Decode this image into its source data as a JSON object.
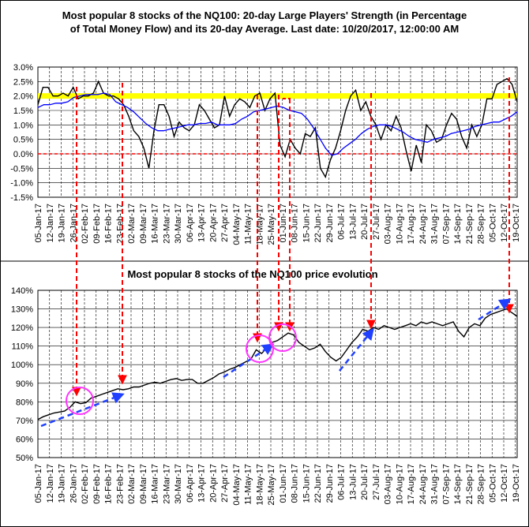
{
  "chart_data": [
    {
      "type": "line",
      "title_line1": "Most popular 8 stocks of the NQ100: 20-day Large Players' Strength (in Percentage",
      "title_line2": "of Total Money Flow) and its 20-day Average. Last date: 10/20/2017, 12:00:00 AM",
      "ylim": [
        -1.5,
        3.0
      ],
      "yticks": [
        "3.0%",
        "2.5%",
        "2.0%",
        "1.5%",
        "1.0%",
        "0.5%",
        "0.0%",
        "-0.5%",
        "-1.0%",
        "-1.5%"
      ],
      "xlabels": [
        "05-Jan-17",
        "12-Jan-17",
        "19-Jan-17",
        "26-Jan-17",
        "02-Feb-17",
        "09-Feb-17",
        "16-Feb-17",
        "23-Feb-17",
        "02-Mar-17",
        "09-Mar-17",
        "16-Mar-17",
        "23-Mar-17",
        "30-Mar-17",
        "06-Apr-17",
        "13-Apr-17",
        "20-Apr-17",
        "27-Apr-17",
        "04-May-17",
        "11-May-17",
        "18-May-17",
        "25-May-17",
        "01-Jun-17",
        "08-Jun-17",
        "15-Jun-17",
        "22-Jun-17",
        "29-Jun-17",
        "06-Jul-17",
        "13-Jul-17",
        "20-Jul-17",
        "27-Jul-17",
        "03-Aug-17",
        "10-Aug-17",
        "17-Aug-17",
        "24-Aug-17",
        "31-Aug-17",
        "07-Sep-17",
        "14-Sep-17",
        "21-Sep-17",
        "28-Sep-17",
        "05-Oct-17",
        "12-Oct-17",
        "19-Oct-17"
      ],
      "reference_lines": [
        {
          "value": 2.0,
          "color": "#ffff00"
        },
        {
          "value": 0.0,
          "color": "#ff0000"
        }
      ],
      "series": [
        {
          "color": "#000000",
          "values": [
            1.7,
            2.3,
            2.3,
            2.0,
            2.0,
            2.1,
            2.0,
            2.3,
            1.9,
            2.0,
            2.0,
            2.1,
            2.5,
            2.1,
            2.0,
            2.0,
            1.9,
            1.7,
            1.3,
            0.8,
            0.6,
            0.2,
            -0.5,
            0.8,
            1.7,
            1.7,
            1.3,
            0.6,
            1.1,
            0.9,
            0.8,
            1.0,
            1.7,
            1.5,
            1.2,
            0.9,
            1.0,
            2.0,
            1.3,
            1.7,
            1.9,
            1.8,
            1.6,
            2.0,
            2.1,
            1.5,
            1.9,
            2.1,
            0.3,
            -0.1,
            0.5,
            0.2,
            0.0,
            0.7,
            0.6,
            0.9,
            -0.5,
            -0.8,
            -0.2,
            0.2,
            0.8,
            1.5,
            2.0,
            2.2,
            1.5,
            1.8,
            1.3,
            1.0,
            0.5,
            1.0,
            0.8,
            1.3,
            0.9,
            0.1,
            -0.6,
            0.3,
            -0.3,
            1.0,
            0.8,
            0.4,
            0.5,
            1.0,
            1.4,
            1.2,
            0.6,
            0.2,
            1.0,
            0.6,
            1.0,
            1.9,
            1.9,
            2.4,
            2.5,
            2.6,
            2.4,
            1.8
          ]
        },
        {
          "color": "#0000ff",
          "values": [
            1.6,
            1.7,
            1.7,
            1.75,
            1.75,
            1.8,
            1.95,
            2.0,
            2.05,
            2.05,
            2.05,
            2.1,
            2.05,
            1.8,
            1.7,
            1.6,
            1.45,
            1.25,
            1.05,
            0.9,
            0.8,
            0.8,
            0.85,
            0.9,
            0.95,
            1.0,
            1.0,
            1.05,
            1.05,
            1.1,
            1.0,
            1.0,
            1.0,
            1.05,
            1.2,
            1.3,
            1.45,
            1.5,
            1.55,
            1.6,
            1.65,
            1.6,
            1.5,
            1.45,
            1.4,
            1.2,
            0.9,
            0.55,
            0.2,
            -0.05,
            0.0,
            0.2,
            0.35,
            0.5,
            0.7,
            0.85,
            0.95,
            1.0,
            1.0,
            0.95,
            0.85,
            0.75,
            0.6,
            0.5,
            0.45,
            0.4,
            0.5,
            0.55,
            0.6,
            0.7,
            0.75,
            0.8,
            0.85,
            0.95,
            1.0,
            1.05,
            1.1,
            1.1,
            1.2,
            1.3,
            1.45
          ]
        }
      ]
    },
    {
      "type": "line",
      "title": "Most popular 8 stocks of the NQ100 price evolution",
      "ylim": [
        50,
        140
      ],
      "yticks": [
        "140%",
        "130%",
        "120%",
        "110%",
        "100%",
        "90%",
        "80%",
        "70%",
        "60%",
        "50%"
      ],
      "xlabels": [
        "05-Jan-17",
        "12-Jan-17",
        "19-Jan-17",
        "26-Jan-17",
        "02-Feb-17",
        "09-Feb-17",
        "16-Feb-17",
        "23-Feb-17",
        "02-Mar-17",
        "09-Mar-17",
        "16-Mar-17",
        "23-Mar-17",
        "30-Mar-17",
        "06-Apr-17",
        "13-Apr-17",
        "20-Apr-17",
        "27-Apr-17",
        "04-May-17",
        "11-May-17",
        "18-May-17",
        "25-May-17",
        "01-Jun-17",
        "08-Jun-17",
        "15-Jun-17",
        "22-Jun-17",
        "29-Jun-17",
        "06-Jul-17",
        "13-Jul-17",
        "20-Jul-17",
        "27-Jul-17",
        "03-Aug-17",
        "10-Aug-17",
        "17-Aug-17",
        "24-Aug-17",
        "31-Aug-17",
        "07-Sep-17",
        "14-Sep-17",
        "21-Sep-17",
        "28-Sep-17",
        "05-Oct-17",
        "12-Oct-17",
        "19-Oct-17"
      ],
      "series": [
        {
          "color": "#000000",
          "values": [
            70.5,
            72,
            73,
            74,
            74.5,
            75,
            77,
            80,
            79,
            79.5,
            82,
            83,
            84,
            85,
            86,
            87,
            86.5,
            87,
            88,
            88,
            89,
            90,
            90.5,
            90,
            91,
            92,
            92.5,
            91.5,
            92,
            92,
            90,
            90,
            91.5,
            93,
            95,
            96,
            97.5,
            98.5,
            100,
            101.5,
            103,
            108,
            106,
            109,
            112,
            113,
            115,
            117,
            116,
            112,
            110,
            108,
            109,
            111,
            107,
            104,
            102,
            104,
            108,
            112,
            115,
            119,
            118,
            120,
            119,
            121,
            120,
            119,
            120,
            121,
            122,
            121,
            123,
            122,
            123,
            122,
            121,
            122,
            123,
            118,
            115,
            120,
            122,
            121,
            125,
            127,
            128,
            129,
            130,
            128,
            126
          ]
        }
      ]
    }
  ]
}
